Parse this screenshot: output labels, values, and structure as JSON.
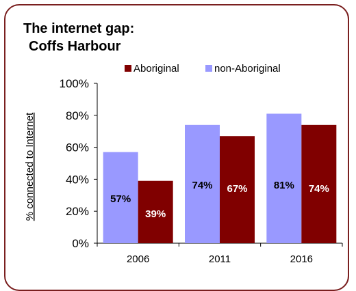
{
  "chart_data": {
    "type": "bar",
    "title_lines": [
      "The internet gap:",
      "Coffs Harbour"
    ],
    "ylabel": "% connected to Internet",
    "xlabel": "",
    "categories": [
      "2006",
      "2011",
      "2016"
    ],
    "ylim": [
      0,
      100
    ],
    "yticks": [
      "0%",
      "20%",
      "40%",
      "60%",
      "80%",
      "100%"
    ],
    "ytick_values": [
      0,
      20,
      40,
      60,
      80,
      100
    ],
    "series": [
      {
        "name": "non-Aboriginal",
        "color": "#9999ff",
        "values": [
          57,
          74,
          81
        ],
        "labels": [
          "57%",
          "74%",
          "81%"
        ]
      },
      {
        "name": "Aboriginal",
        "color": "#800000",
        "values": [
          39,
          67,
          74
        ],
        "labels": [
          "39%",
          "67%",
          "74%"
        ]
      }
    ],
    "legend_order": [
      "Aboriginal",
      "non-Aboriginal"
    ],
    "legend_position": "top",
    "grid": false
  }
}
